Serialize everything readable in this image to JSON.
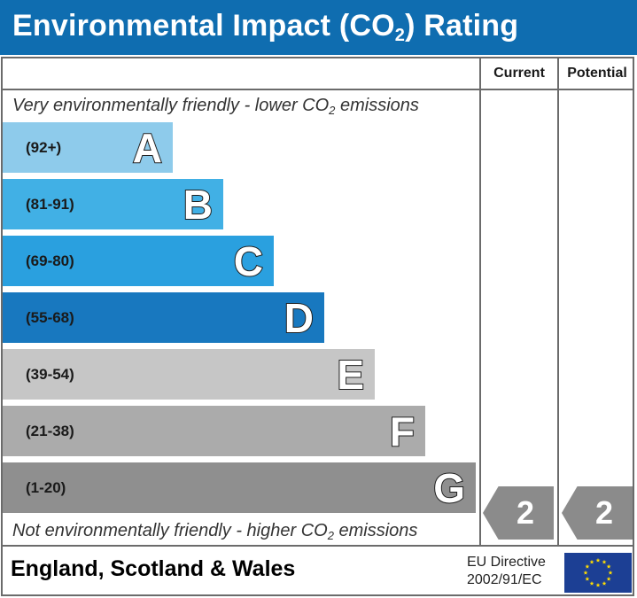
{
  "header": {
    "title_main": "Environmental Impact (CO",
    "title_sub": "2",
    "title_end": ") Rating"
  },
  "columns": {
    "current": "Current",
    "potential": "Potential"
  },
  "notes": {
    "top_main": "Very environmentally friendly - lower CO",
    "top_sub": "2",
    "top_end": " emissions",
    "bottom_main": "Not environmentally friendly - higher CO",
    "bottom_sub": "2",
    "bottom_end": " emissions"
  },
  "chart_data": {
    "type": "bar",
    "title": "Environmental Impact (CO2) Rating",
    "bands": [
      {
        "letter": "A",
        "range": "(92+)",
        "color": "#8ecbeb"
      },
      {
        "letter": "B",
        "range": "(81-91)",
        "color": "#41b0e5"
      },
      {
        "letter": "C",
        "range": "(69-80)",
        "color": "#2aa0df"
      },
      {
        "letter": "D",
        "range": "(55-68)",
        "color": "#1878bf"
      },
      {
        "letter": "E",
        "range": "(39-54)",
        "color": "#c6c6c6"
      },
      {
        "letter": "F",
        "range": "(21-38)",
        "color": "#ababab"
      },
      {
        "letter": "G",
        "range": "(1-20)",
        "color": "#8f8f8f"
      }
    ],
    "current": {
      "value": "2",
      "band": "G"
    },
    "potential": {
      "value": "2",
      "band": "G"
    }
  },
  "footer": {
    "region": "England, Scotland & Wales",
    "directive_line1": "EU Directive",
    "directive_line2": "2002/91/EC"
  },
  "colors": {
    "header_bg": "#0f6db0",
    "indicator": "#8b8b8b",
    "flag_bg": "#1c3f94",
    "flag_star": "#ffdd00"
  }
}
